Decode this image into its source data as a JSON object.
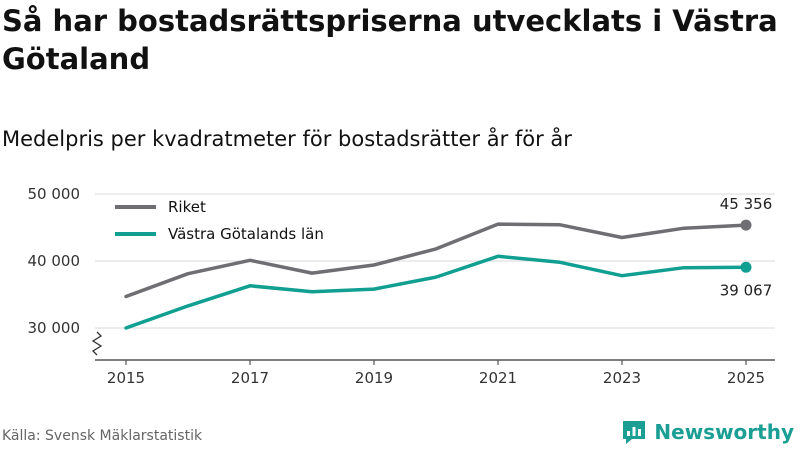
{
  "title": "Så har bostadsrättspriserna utvecklats i Västra Götaland",
  "subtitle": "Medelpris per kvadratmeter för bostadsrätter år för år",
  "source": "Källa: Svensk Mäklarstatistik",
  "brand": "Newsworthy",
  "colors": {
    "riket": "#6e6e73",
    "vastra_gotaland": "#119f92",
    "grid": "#d9d9d9",
    "brand": "#1b9e93"
  },
  "chart_data": {
    "type": "line",
    "x": [
      2015,
      2016,
      2017,
      2018,
      2019,
      2020,
      2021,
      2022,
      2023,
      2024,
      2025
    ],
    "x_ticks": [
      2015,
      2017,
      2019,
      2021,
      2023,
      2025
    ],
    "x_tick_labels": [
      "2015",
      "2017",
      "2019",
      "2021",
      "2023",
      "2025"
    ],
    "y_ticks": [
      30000,
      40000,
      50000
    ],
    "y_tick_labels": [
      "30 000",
      "40 000",
      "50 000"
    ],
    "ylim": [
      27000,
      50000
    ],
    "y_axis_break": true,
    "legend_position": "top-left",
    "series": [
      {
        "name": "Riket",
        "color": "#6e6e73",
        "values": [
          34700,
          38100,
          40100,
          38200,
          39400,
          41800,
          45500,
          45400,
          43500,
          44900,
          45356
        ],
        "end_label": "45 356",
        "end_label_position": "above"
      },
      {
        "name": "Västra Götalands län",
        "color": "#119f92",
        "values": [
          30000,
          33300,
          36300,
          35400,
          35800,
          37600,
          40700,
          39800,
          37800,
          39000,
          39067
        ],
        "end_label": "39 067",
        "end_label_position": "below"
      }
    ]
  }
}
